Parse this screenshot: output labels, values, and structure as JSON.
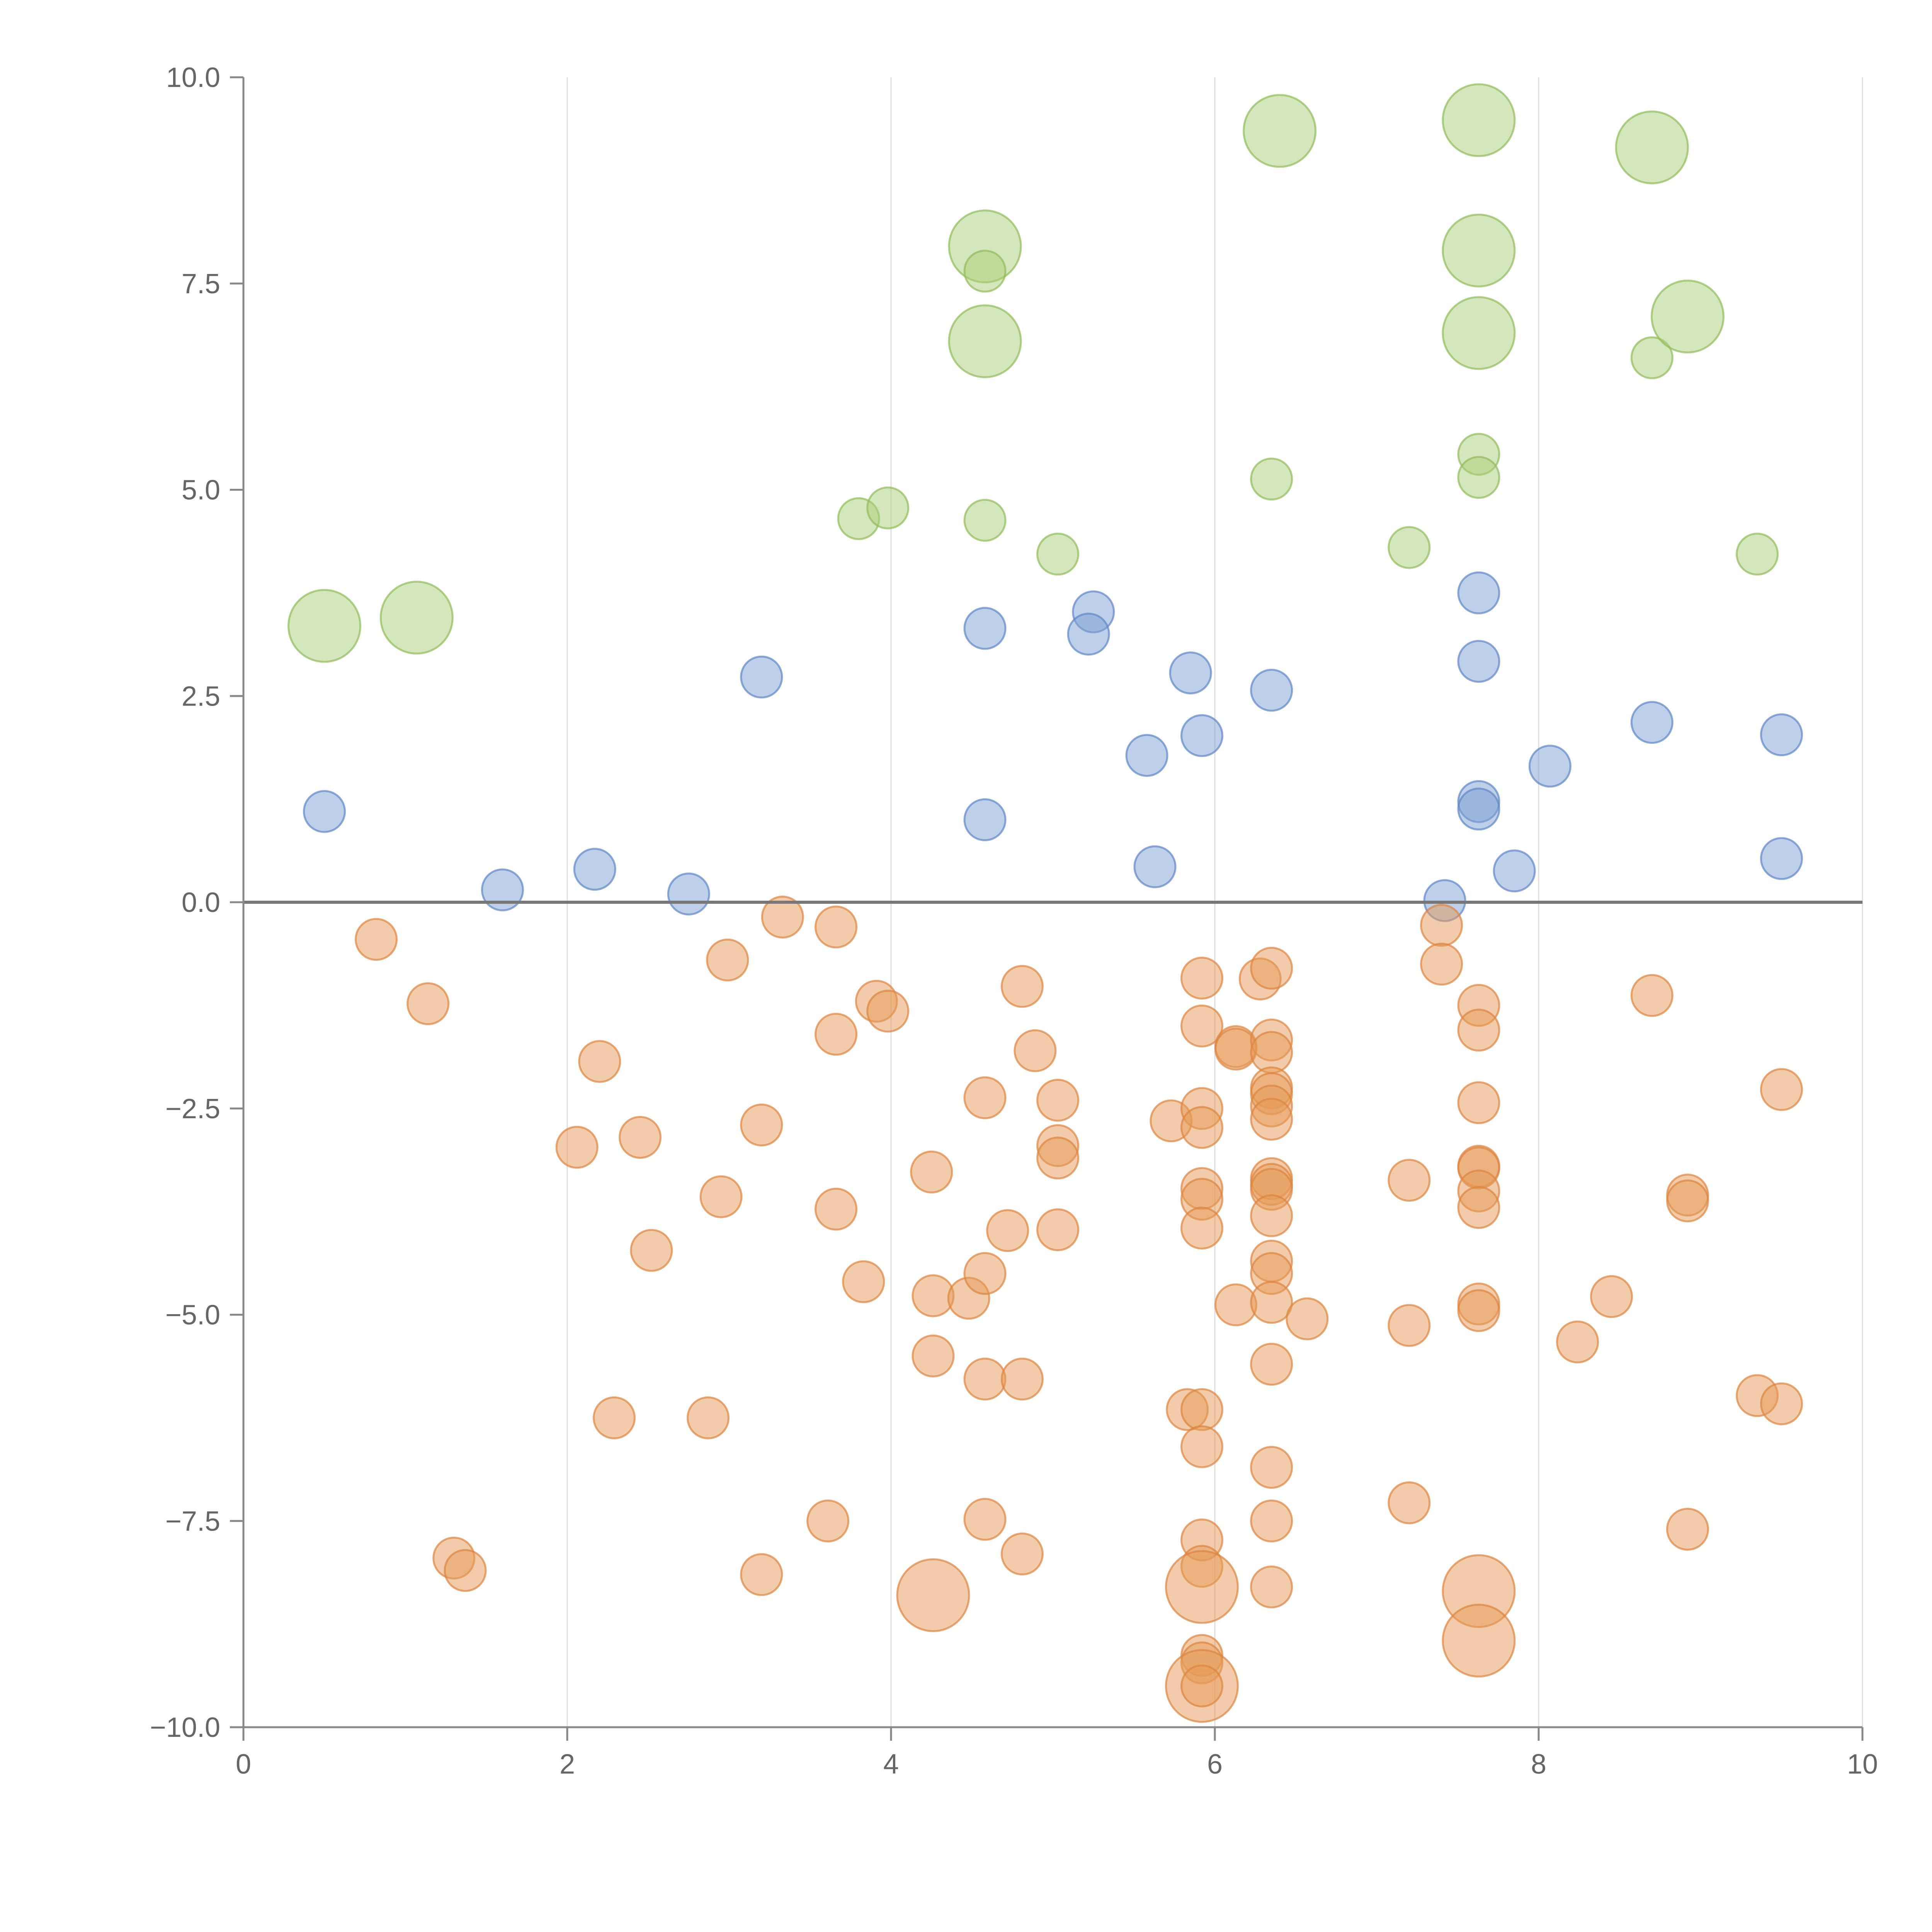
{
  "chart_data": {
    "type": "scatter",
    "title": "",
    "xlabel": "",
    "ylabel": "",
    "xlim": [
      0,
      10
    ],
    "ylim": [
      -10,
      10
    ],
    "x_ticks": [
      0,
      2,
      4,
      6,
      8,
      10
    ],
    "x_tick_labels": [
      "0",
      "2",
      "4",
      "6",
      "8",
      "10"
    ],
    "y_ticks": [
      10,
      7.5,
      5,
      2.5,
      0,
      -2.5,
      -5,
      -7.5,
      -10
    ],
    "y_tick_labels": [
      "10.0",
      "7.5",
      "5.0",
      "2.5",
      "0.0",
      "−2.5",
      "−5.0",
      "−7.5",
      "−10.0"
    ],
    "grid": "vertical",
    "zero_line": 0,
    "colors": {
      "green": "#a9cd77",
      "green_stroke": "#8fbc5a",
      "blue": "#7c9fd4",
      "blue_stroke": "#5f86c4",
      "orange": "#e69a55",
      "orange_stroke": "#dd8440",
      "opacity": "0.5",
      "axis": "#888888",
      "grid": "#dddddd"
    },
    "series": [
      {
        "name": "green",
        "points": [
          [
            0.5,
            3.35,
            2
          ],
          [
            1.07,
            3.45,
            2
          ],
          [
            3.8,
            4.65,
            1
          ],
          [
            3.98,
            4.78,
            1
          ],
          [
            4.58,
            7.95,
            2
          ],
          [
            4.58,
            7.65,
            1
          ],
          [
            4.58,
            6.8,
            2
          ],
          [
            4.58,
            4.63,
            1
          ],
          [
            5.03,
            4.22,
            1
          ],
          [
            6.4,
            9.35,
            2
          ],
          [
            6.35,
            5.13,
            1
          ],
          [
            7.2,
            4.3,
            1
          ],
          [
            7.63,
            9.48,
            2
          ],
          [
            7.63,
            7.9,
            2
          ],
          [
            7.63,
            6.9,
            2
          ],
          [
            7.63,
            5.43,
            1
          ],
          [
            7.63,
            5.15,
            1
          ],
          [
            8.7,
            9.15,
            2
          ],
          [
            8.7,
            6.6,
            1
          ],
          [
            8.92,
            7.1,
            2
          ],
          [
            9.35,
            4.22,
            1
          ]
        ]
      },
      {
        "name": "blue",
        "points": [
          [
            0.5,
            1.1,
            1
          ],
          [
            1.6,
            0.15,
            1
          ],
          [
            2.17,
            0.4,
            1
          ],
          [
            2.75,
            0.1,
            1
          ],
          [
            3.2,
            2.73,
            1
          ],
          [
            4.58,
            3.32,
            1
          ],
          [
            4.58,
            1.0,
            1
          ],
          [
            5.25,
            3.52,
            1
          ],
          [
            5.22,
            3.25,
            1
          ],
          [
            5.58,
            1.78,
            1
          ],
          [
            5.63,
            0.43,
            1
          ],
          [
            5.85,
            2.78,
            1
          ],
          [
            5.92,
            2.02,
            1
          ],
          [
            6.35,
            2.57,
            1
          ],
          [
            7.42,
            0.02,
            1
          ],
          [
            7.63,
            3.75,
            1
          ],
          [
            7.63,
            2.92,
            1
          ],
          [
            7.63,
            1.22,
            1
          ],
          [
            7.63,
            1.13,
            1
          ],
          [
            7.85,
            0.38,
            1
          ],
          [
            8.07,
            1.65,
            1
          ],
          [
            8.7,
            2.18,
            1
          ],
          [
            9.5,
            2.03,
            1
          ],
          [
            9.5,
            0.53,
            1
          ]
        ]
      },
      {
        "name": "orange",
        "points": [
          [
            0.82,
            -0.45,
            1
          ],
          [
            1.14,
            -1.23,
            1
          ],
          [
            1.3,
            -7.95,
            1
          ],
          [
            1.37,
            -8.1,
            1
          ],
          [
            2.06,
            -2.97,
            1
          ],
          [
            2.2,
            -1.93,
            1
          ],
          [
            2.29,
            -6.25,
            1
          ],
          [
            2.45,
            -2.85,
            1
          ],
          [
            2.52,
            -4.22,
            1
          ],
          [
            2.87,
            -6.25,
            1
          ],
          [
            2.95,
            -3.57,
            1
          ],
          [
            2.99,
            -0.7,
            1
          ],
          [
            3.2,
            -2.7,
            1
          ],
          [
            3.2,
            -8.15,
            1
          ],
          [
            3.33,
            -0.18,
            1
          ],
          [
            3.61,
            -7.5,
            1
          ],
          [
            3.66,
            -0.3,
            1
          ],
          [
            3.66,
            -1.6,
            1
          ],
          [
            3.66,
            -3.72,
            1
          ],
          [
            3.83,
            -4.6,
            1
          ],
          [
            3.91,
            -1.2,
            1
          ],
          [
            3.98,
            -1.32,
            1
          ],
          [
            4.25,
            -3.27,
            1
          ],
          [
            4.26,
            -4.77,
            1
          ],
          [
            4.26,
            -5.5,
            1
          ],
          [
            4.26,
            -8.4,
            2
          ],
          [
            4.48,
            -4.8,
            1
          ],
          [
            4.58,
            -2.37,
            1
          ],
          [
            4.58,
            -4.5,
            1
          ],
          [
            4.58,
            -5.78,
            1
          ],
          [
            4.58,
            -7.48,
            1
          ],
          [
            4.72,
            -3.98,
            1
          ],
          [
            4.81,
            -1.02,
            1
          ],
          [
            4.81,
            -5.78,
            1
          ],
          [
            4.81,
            -7.9,
            1
          ],
          [
            4.89,
            -1.8,
            1
          ],
          [
            5.03,
            -2.4,
            1
          ],
          [
            5.03,
            -2.95,
            1
          ],
          [
            5.03,
            -3.1,
            1
          ],
          [
            5.03,
            -3.97,
            1
          ],
          [
            5.73,
            -2.65,
            1
          ],
          [
            5.83,
            -6.15,
            1
          ],
          [
            5.92,
            -0.92,
            1
          ],
          [
            5.92,
            -1.5,
            1
          ],
          [
            5.92,
            -2.5,
            1
          ],
          [
            5.92,
            -2.73,
            1
          ],
          [
            5.92,
            -3.47,
            1
          ],
          [
            5.92,
            -3.6,
            1
          ],
          [
            5.92,
            -3.95,
            1
          ],
          [
            5.92,
            -6.15,
            1
          ],
          [
            5.92,
            -6.6,
            1
          ],
          [
            5.92,
            -7.73,
            1
          ],
          [
            5.92,
            -8.05,
            1
          ],
          [
            5.92,
            -8.3,
            2
          ],
          [
            5.92,
            -9.13,
            1
          ],
          [
            5.92,
            -9.22,
            1
          ],
          [
            5.92,
            -9.5,
            2
          ],
          [
            5.92,
            -9.5,
            1
          ],
          [
            6.13,
            -1.75,
            1
          ],
          [
            6.13,
            -1.78,
            1
          ],
          [
            6.13,
            -4.88,
            1
          ],
          [
            6.28,
            -0.93,
            1
          ],
          [
            6.35,
            -0.8,
            1
          ],
          [
            6.35,
            -1.67,
            1
          ],
          [
            6.35,
            -1.82,
            1
          ],
          [
            6.35,
            -2.25,
            1
          ],
          [
            6.35,
            -2.32,
            1
          ],
          [
            6.35,
            -2.47,
            1
          ],
          [
            6.35,
            -2.63,
            1
          ],
          [
            6.35,
            -3.35,
            1
          ],
          [
            6.35,
            -3.42,
            1
          ],
          [
            6.35,
            -3.48,
            1
          ],
          [
            6.35,
            -3.8,
            1
          ],
          [
            6.35,
            -4.35,
            1
          ],
          [
            6.35,
            -4.5,
            1
          ],
          [
            6.35,
            -4.85,
            1
          ],
          [
            6.35,
            -5.6,
            1
          ],
          [
            6.35,
            -6.85,
            1
          ],
          [
            6.35,
            -7.5,
            1
          ],
          [
            6.35,
            -8.3,
            1
          ],
          [
            6.57,
            -5.05,
            1
          ],
          [
            7.2,
            -3.37,
            1
          ],
          [
            7.2,
            -5.13,
            1
          ],
          [
            7.2,
            -7.28,
            1
          ],
          [
            7.4,
            -0.28,
            1
          ],
          [
            7.4,
            -0.75,
            1
          ],
          [
            7.63,
            -1.25,
            1
          ],
          [
            7.63,
            -1.55,
            1
          ],
          [
            7.63,
            -2.43,
            1
          ],
          [
            7.63,
            -3.2,
            1
          ],
          [
            7.63,
            -3.22,
            1
          ],
          [
            7.63,
            -3.5,
            1
          ],
          [
            7.63,
            -3.7,
            1
          ],
          [
            7.63,
            -4.87,
            1
          ],
          [
            7.63,
            -4.95,
            1
          ],
          [
            7.63,
            -8.35,
            2
          ],
          [
            7.63,
            -8.95,
            2
          ],
          [
            8.24,
            -5.33,
            1
          ],
          [
            8.45,
            -4.78,
            1
          ],
          [
            8.7,
            -1.13,
            1
          ],
          [
            8.92,
            -3.55,
            1
          ],
          [
            8.92,
            -3.62,
            1
          ],
          [
            8.92,
            -7.6,
            1
          ],
          [
            9.35,
            -5.98,
            1
          ],
          [
            9.5,
            -2.27,
            1
          ],
          [
            9.5,
            -6.08,
            1
          ]
        ]
      }
    ]
  }
}
